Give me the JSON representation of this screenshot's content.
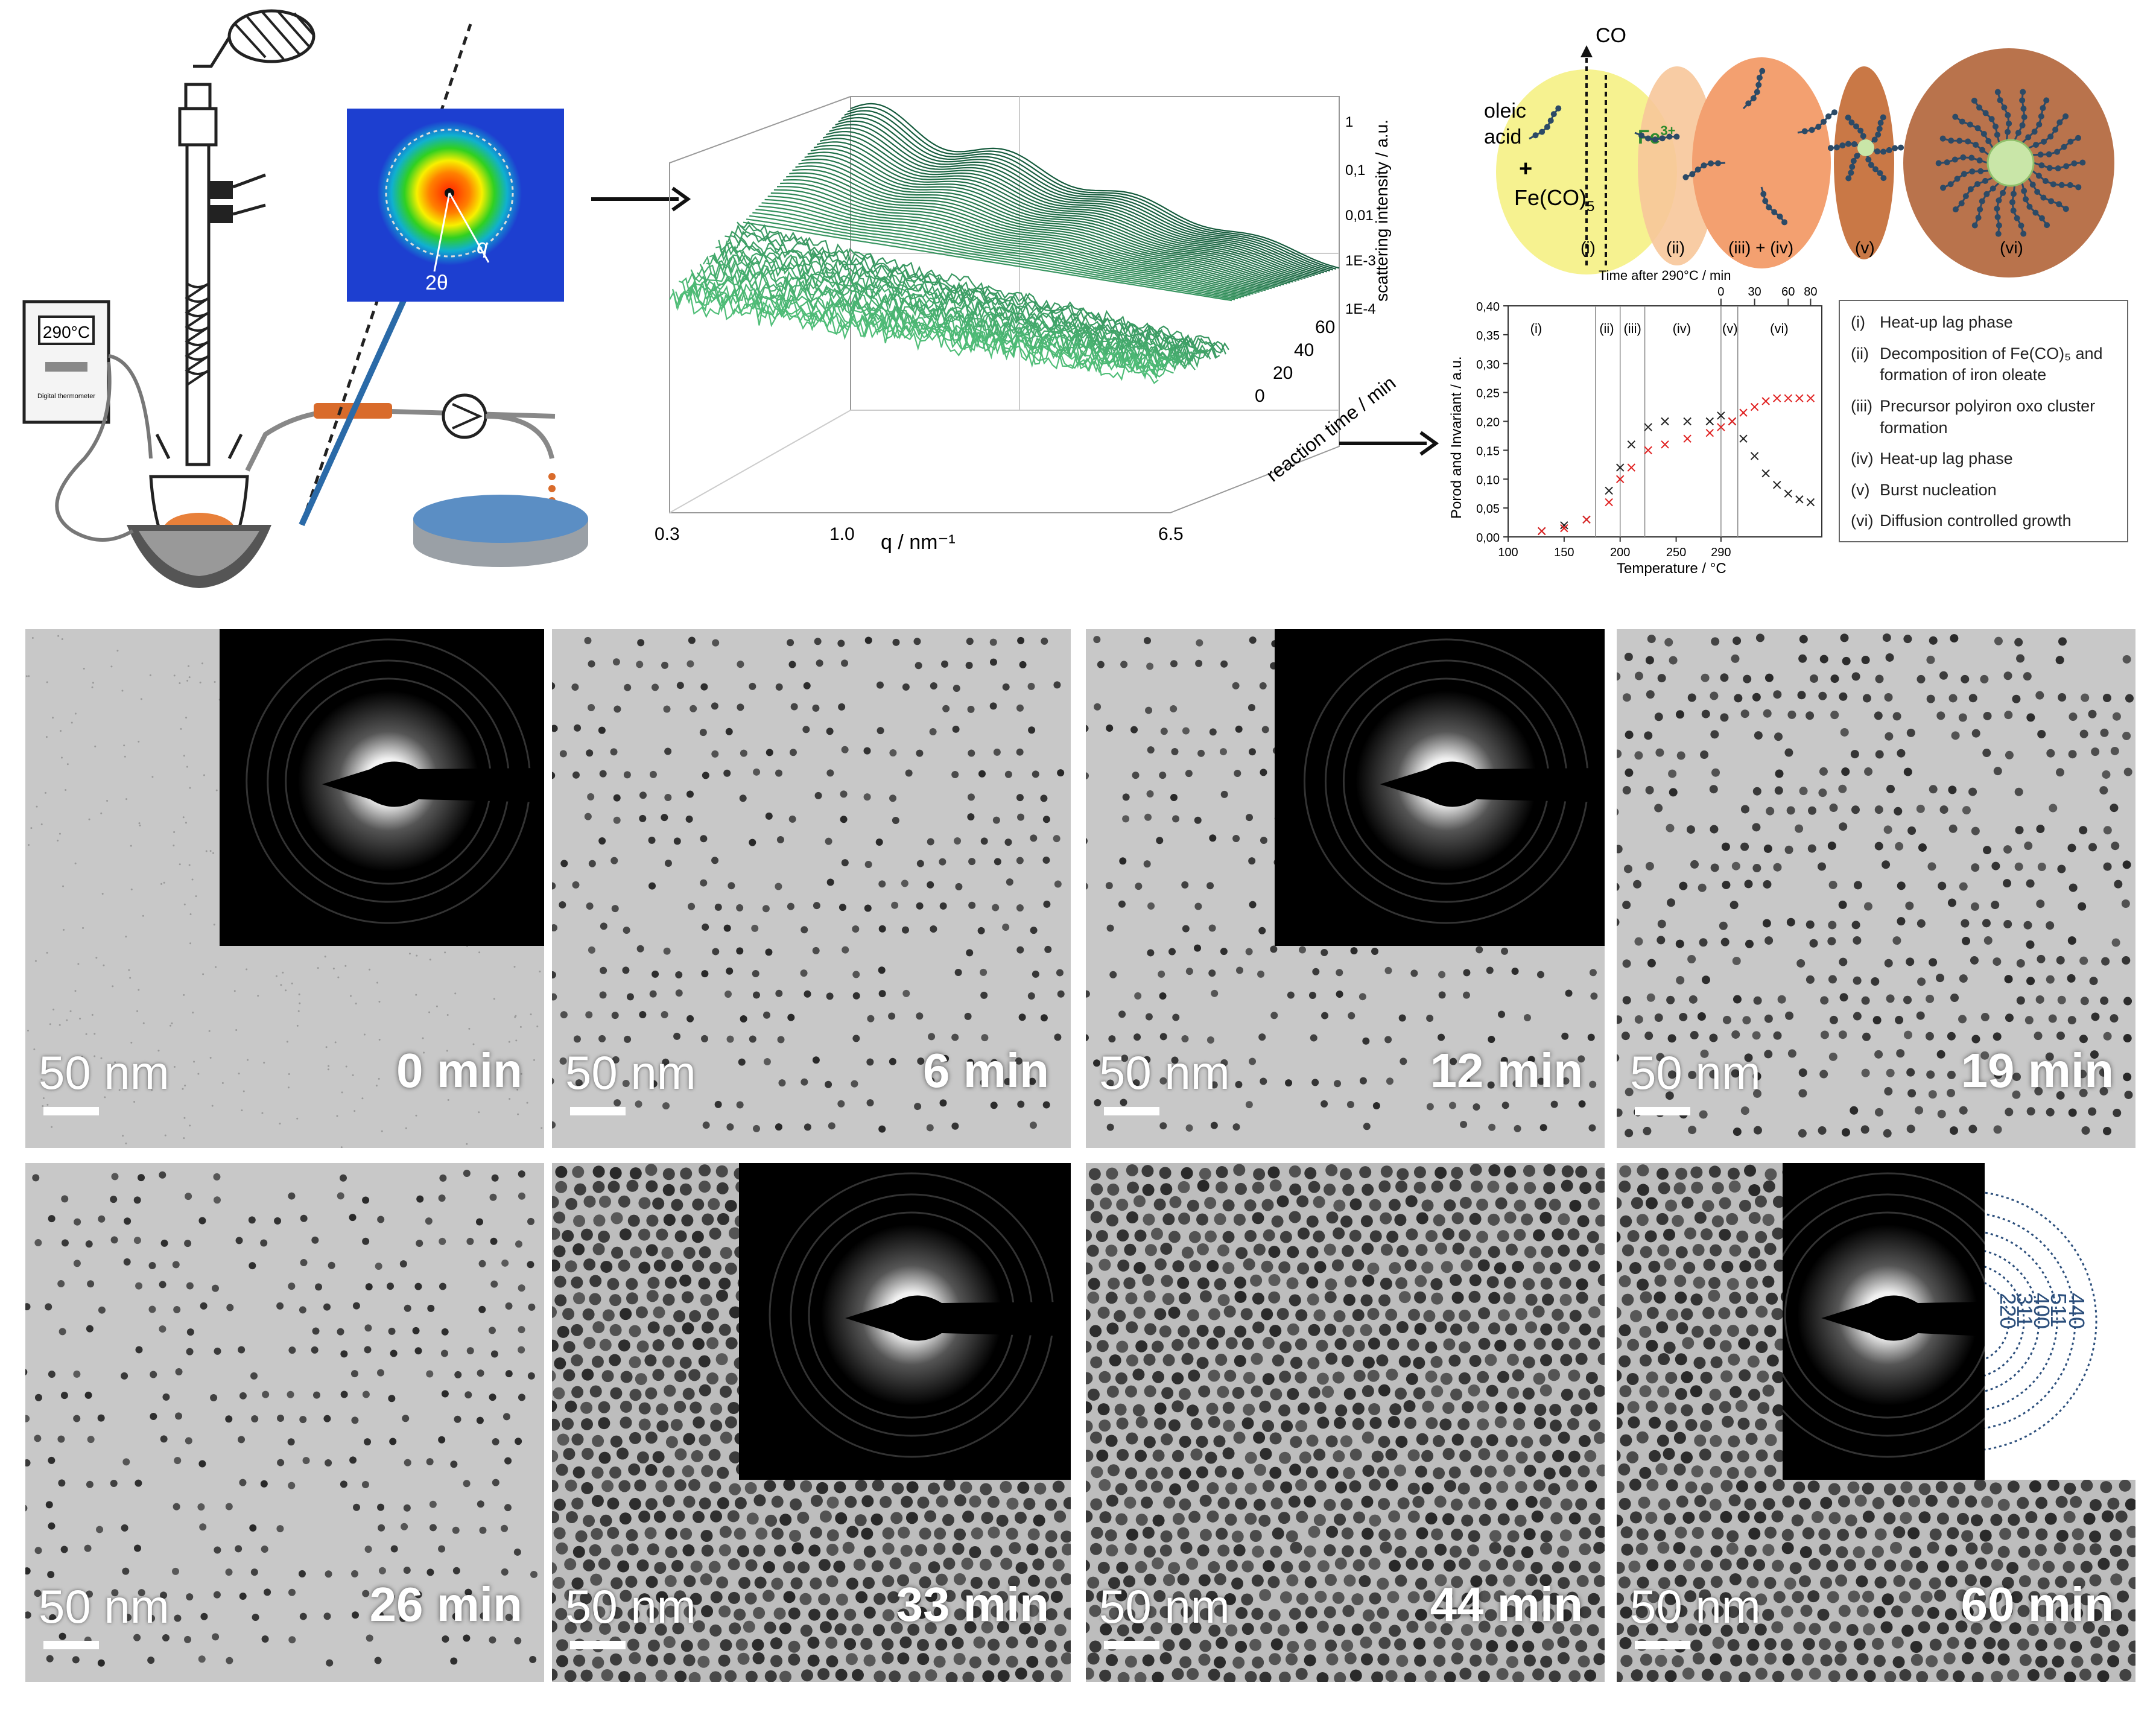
{
  "setup": {
    "thermometer_display": "290°C",
    "reference_label": "Digital thermometer",
    "angle_label": "2θ",
    "q_label": "q"
  },
  "waterfall": {
    "x_axis_label": "q / nm⁻¹",
    "x_ticks": [
      "0.3",
      "1.0",
      "6.5"
    ],
    "y_axis_label": "reaction time / min",
    "y_ticks": [
      "60",
      "40",
      "20",
      "0"
    ],
    "z_axis_label": "scattering intensity / a.u.",
    "z_ticks": [
      "1",
      "0,1",
      "0,01",
      "1E-3",
      "1E-4"
    ]
  },
  "scheme": {
    "co_label": "CO",
    "oleic_label_1": "oleic",
    "oleic_label_2": "acid",
    "plus_label": "+",
    "feco_label": "Fe(CO)",
    "feco_sub": "5",
    "fe3_label": "Fe",
    "fe3_sup": "3+",
    "stage_labels": [
      "(i)",
      "(ii)",
      "(iii) + (iv)",
      "(v)",
      "(vi)"
    ],
    "colors": {
      "stage_i": "#f6f290",
      "stage_ii": "#f7c79a",
      "stage_iii": "#f3a070",
      "stage_v": "#c97846",
      "stage_vi": "#b9734c",
      "ligand": "#2c4a66",
      "core": "#c9e6a8"
    }
  },
  "chart": {
    "top_axis_label": "Time after 290°C / min",
    "top_ticks": [
      "0",
      "30",
      "60",
      "80"
    ],
    "phase_labels": [
      "(i)",
      "(ii)",
      "(iii)",
      "(iv)",
      "(v)",
      "(vi)"
    ],
    "x_label": "Temperature / °C",
    "y_label": "Porod and Invariant / a.u.",
    "x_ticks": [
      "100",
      "150",
      "200",
      "250",
      "290"
    ],
    "y_ticks": [
      "0,00",
      "0,05",
      "0,10",
      "0,15",
      "0,20",
      "0,25",
      "0,30",
      "0,35",
      "0,40"
    ]
  },
  "chart_data": {
    "type": "scatter",
    "xlabel": "Temperature / °C",
    "ylabel": "Porod and Invariant / a.u.",
    "ylim": [
      0,
      0.4
    ],
    "x_ticks": [
      100,
      150,
      200,
      250,
      290
    ],
    "top_axis": {
      "label": "Time after 290°C / min",
      "ticks": [
        0,
        30,
        60,
        80
      ]
    },
    "phase_boundaries": [
      178,
      200,
      222,
      290
    ],
    "series": [
      {
        "color": "#222222",
        "marker": "x",
        "x": [
          130,
          150,
          170,
          190,
          200,
          210,
          225,
          240,
          260,
          280,
          290,
          300,
          310,
          320,
          330,
          340,
          350,
          360,
          370
        ],
        "y": [
          0.01,
          0.02,
          0.03,
          0.08,
          0.12,
          0.16,
          0.19,
          0.2,
          0.2,
          0.2,
          0.21,
          0.2,
          0.17,
          0.14,
          0.11,
          0.09,
          0.075,
          0.065,
          0.06
        ]
      },
      {
        "color": "#e02020",
        "marker": "x",
        "x": [
          130,
          150,
          170,
          190,
          200,
          210,
          225,
          240,
          260,
          280,
          290,
          300,
          310,
          320,
          330,
          340,
          350,
          360,
          370
        ],
        "y": [
          0.01,
          0.015,
          0.03,
          0.06,
          0.1,
          0.12,
          0.15,
          0.16,
          0.17,
          0.18,
          0.19,
          0.2,
          0.215,
          0.225,
          0.235,
          0.24,
          0.24,
          0.24,
          0.24
        ]
      }
    ]
  },
  "legend": [
    {
      "num": "(i)",
      "text": "Heat-up lag phase"
    },
    {
      "num": "(ii)",
      "text": "Decomposition of Fe(CO)₅ and formation of iron oleate"
    },
    {
      "num": "(iii)",
      "text": "Precursor polyiron oxo cluster formation"
    },
    {
      "num": "(iv)",
      "text": "Heat-up lag phase"
    },
    {
      "num": "(v)",
      "text": "Burst nucleation"
    },
    {
      "num": "(vi)",
      "text": "Diffusion controlled growth"
    }
  ],
  "panels": [
    {
      "scale": "50 nm",
      "time": "0 min",
      "density": 0
    },
    {
      "scale": "50 nm",
      "time": "6 min",
      "density": 1
    },
    {
      "scale": "50 nm",
      "time": "12 min",
      "density": 1
    },
    {
      "scale": "50 nm",
      "time": "19 min",
      "density": 2
    },
    {
      "scale": "50 nm",
      "time": "26 min",
      "density": 1
    },
    {
      "scale": "50 nm",
      "time": "33 min",
      "density": 3
    },
    {
      "scale": "50 nm",
      "time": "44 min",
      "density": 3
    },
    {
      "scale": "50 nm",
      "time": "60 min",
      "density": 3
    }
  ],
  "saed_indices": [
    "440",
    "511",
    "400",
    "311",
    "220"
  ]
}
